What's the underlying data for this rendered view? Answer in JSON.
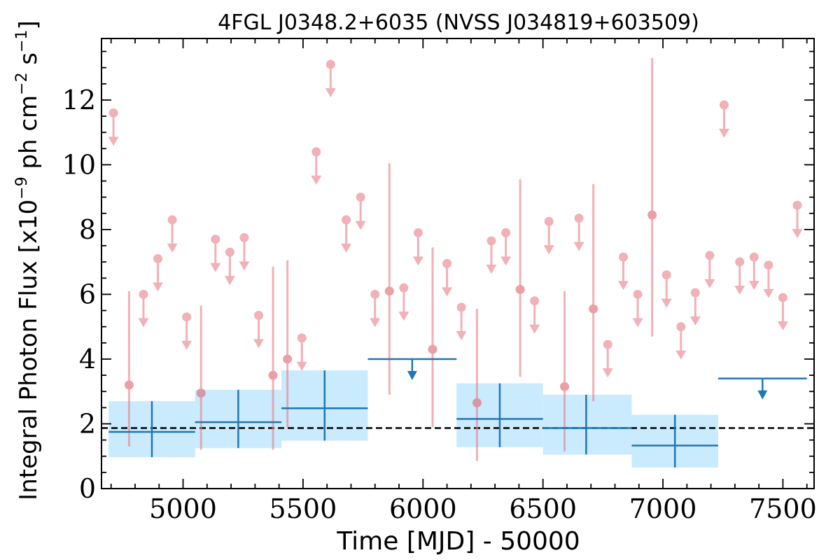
{
  "chart_data": {
    "type": "scatter",
    "title": "4FGL J0348.2+6035 (NVSS J034819+603509)",
    "xlabel": "Time [MJD] - 50000",
    "ylabel_prefix": "Integral Photon Flux [x10",
    "ylabel_exp1": "−9",
    "ylabel_mid": " ph cm",
    "ylabel_exp2": "−2",
    "ylabel_mid2": " s",
    "ylabel_exp3": "−1",
    "ylabel_suffix": "]",
    "xlim": [
      4660,
      7630
    ],
    "ylim": [
      0,
      13.9
    ],
    "xticks": [
      5000,
      5500,
      6000,
      6500,
      7000,
      7500
    ],
    "yticks": [
      0,
      2,
      4,
      6,
      8,
      10,
      12
    ],
    "xtick_labels": [
      "5000",
      "5500",
      "6000",
      "6500",
      "7000",
      "7500"
    ],
    "ytick_labels": [
      "0",
      "2",
      "4",
      "6",
      "8",
      "10",
      "12"
    ],
    "reference_level": 1.87,
    "colors": {
      "fine": "#e8828c",
      "coarse": "#1f77b4",
      "band": "#c9ebfd",
      "reference": "#000000"
    },
    "fine_upper_limits": [
      {
        "x": 4710,
        "y": 11.6
      },
      {
        "x": 4835,
        "y": 6.0
      },
      {
        "x": 4895,
        "y": 7.1
      },
      {
        "x": 4955,
        "y": 8.3
      },
      {
        "x": 5015,
        "y": 5.3
      },
      {
        "x": 5135,
        "y": 7.7
      },
      {
        "x": 5195,
        "y": 7.3
      },
      {
        "x": 5255,
        "y": 7.75
      },
      {
        "x": 5315,
        "y": 5.35
      },
      {
        "x": 5495,
        "y": 4.65
      },
      {
        "x": 5555,
        "y": 10.4
      },
      {
        "x": 5615,
        "y": 13.1
      },
      {
        "x": 5680,
        "y": 8.3
      },
      {
        "x": 5740,
        "y": 9.0
      },
      {
        "x": 5800,
        "y": 6.0
      },
      {
        "x": 5920,
        "y": 6.2
      },
      {
        "x": 5980,
        "y": 7.9
      },
      {
        "x": 6100,
        "y": 6.95
      },
      {
        "x": 6160,
        "y": 5.6
      },
      {
        "x": 6285,
        "y": 7.65
      },
      {
        "x": 6345,
        "y": 7.9
      },
      {
        "x": 6465,
        "y": 5.8
      },
      {
        "x": 6525,
        "y": 8.25
      },
      {
        "x": 6650,
        "y": 8.35
      },
      {
        "x": 6770,
        "y": 4.45
      },
      {
        "x": 6835,
        "y": 7.15
      },
      {
        "x": 6895,
        "y": 6.0
      },
      {
        "x": 7015,
        "y": 6.6
      },
      {
        "x": 7075,
        "y": 5.0
      },
      {
        "x": 7135,
        "y": 6.05
      },
      {
        "x": 7195,
        "y": 7.2
      },
      {
        "x": 7255,
        "y": 11.85
      },
      {
        "x": 7320,
        "y": 7.0
      },
      {
        "x": 7380,
        "y": 7.15
      },
      {
        "x": 7440,
        "y": 6.9
      },
      {
        "x": 7500,
        "y": 5.9
      },
      {
        "x": 7560,
        "y": 8.75
      }
    ],
    "fine_detections": [
      {
        "x": 4775,
        "y": 3.2,
        "ylo": 1.3,
        "yhi": 6.1
      },
      {
        "x": 5075,
        "y": 2.95,
        "ylo": 1.2,
        "yhi": 5.65
      },
      {
        "x": 5375,
        "y": 3.5,
        "ylo": 1.2,
        "yhi": 6.85
      },
      {
        "x": 5435,
        "y": 4.0,
        "ylo": 1.9,
        "yhi": 7.05
      },
      {
        "x": 5860,
        "y": 6.1,
        "ylo": 2.9,
        "yhi": 10.05
      },
      {
        "x": 6040,
        "y": 4.3,
        "ylo": 1.9,
        "yhi": 7.45
      },
      {
        "x": 6225,
        "y": 2.65,
        "ylo": 0.85,
        "yhi": 5.55
      },
      {
        "x": 6405,
        "y": 6.15,
        "ylo": 3.45,
        "yhi": 9.55
      },
      {
        "x": 6590,
        "y": 3.15,
        "ylo": 1.15,
        "yhi": 6.1
      },
      {
        "x": 6710,
        "y": 5.55,
        "ylo": 2.7,
        "yhi": 9.4
      },
      {
        "x": 6955,
        "y": 8.45,
        "ylo": 4.7,
        "yhi": 13.3
      }
    ],
    "coarse_bins": [
      {
        "x": 4870,
        "xlo": 4690,
        "xhi": 5050,
        "y": 1.75,
        "ylo": 0.97,
        "yhi": 2.7
      },
      {
        "x": 5230,
        "xlo": 5050,
        "xhi": 5410,
        "y": 2.05,
        "ylo": 1.25,
        "yhi": 3.05
      },
      {
        "x": 5590,
        "xlo": 5410,
        "xhi": 5770,
        "y": 2.48,
        "ylo": 1.48,
        "yhi": 3.65
      },
      {
        "x": 6320,
        "xlo": 6140,
        "xhi": 6500,
        "y": 2.15,
        "ylo": 1.28,
        "yhi": 3.25
      },
      {
        "x": 6680,
        "xlo": 6500,
        "xhi": 6870,
        "y": 1.87,
        "ylo": 1.05,
        "yhi": 2.9
      },
      {
        "x": 7050,
        "xlo": 6870,
        "xhi": 7230,
        "y": 1.33,
        "ylo": 0.65,
        "yhi": 2.28
      }
    ],
    "coarse_upper_limits": [
      {
        "x": 5955,
        "xlo": 5770,
        "xhi": 6140,
        "y": 4.0
      },
      {
        "x": 7415,
        "xlo": 7230,
        "xhi": 7600,
        "y": 3.4
      }
    ]
  }
}
